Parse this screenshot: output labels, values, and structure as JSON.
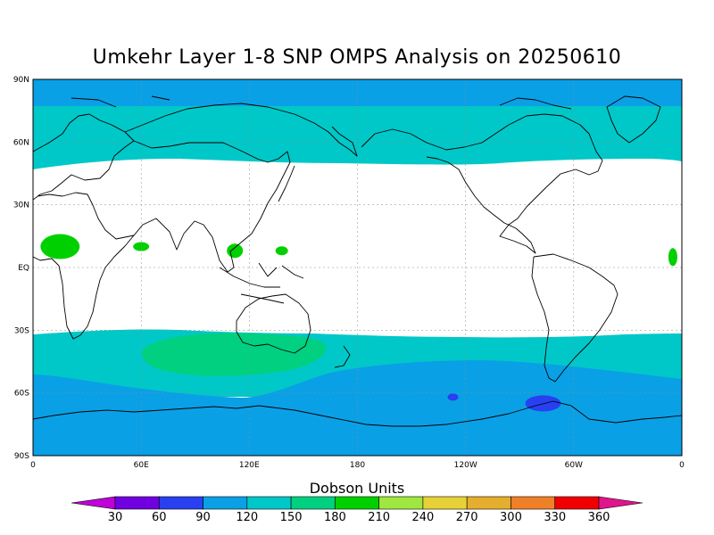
{
  "title": "Umkehr Layer 1-8 SNP OMPS Analysis on 20250610",
  "latitude_ticks": [
    "90N",
    "60N",
    "30N",
    "EQ",
    "30S",
    "60S",
    "90S"
  ],
  "longitude_ticks": [
    "0",
    "60E",
    "120E",
    "180",
    "120W",
    "60W",
    "0"
  ],
  "colorbar": {
    "title": "Dobson Units",
    "labels": [
      "30",
      "60",
      "90",
      "120",
      "150",
      "180",
      "210",
      "240",
      "270",
      "300",
      "330",
      "360"
    ],
    "colors": [
      "#c000d8",
      "#7000e0",
      "#2840f0",
      "#0aa0e6",
      "#00c8c8",
      "#00d080",
      "#00d000",
      "#a0e640",
      "#e6d238",
      "#e6ae2e",
      "#f08028",
      "#f00000",
      "#e0148c"
    ]
  },
  "chart_data": {
    "type": "heatmap",
    "title": "Umkehr Layer 1-8 SNP OMPS Analysis on 20250610",
    "projection": "cylindrical equidistant, 0 to 360 longitude",
    "xlim": [
      0,
      360
    ],
    "ylim": [
      -90,
      90
    ],
    "units": "Dobson Units",
    "bands": [
      {
        "lat_range": [
          75,
          90
        ],
        "range_du": [
          90,
          120
        ],
        "color": "#0aa0e6"
      },
      {
        "lat_range": [
          60,
          75
        ],
        "range_du": [
          120,
          150
        ],
        "color": "#00c8c8"
      },
      {
        "lat_range": [
          -35,
          60
        ],
        "range_du": [
          150,
          180
        ],
        "color": "#00d080"
      },
      {
        "lat_range": [
          -55,
          -35
        ],
        "range_du": [
          120,
          150
        ],
        "color": "#00c8c8"
      },
      {
        "lat_range": [
          -90,
          -55
        ],
        "range_du": [
          90,
          120
        ],
        "color": "#0aa0e6"
      }
    ],
    "features": [
      {
        "name": "tropical Africa",
        "lon": 15,
        "lat": 10,
        "range_du": [
          180,
          210
        ],
        "color": "#00d000"
      },
      {
        "name": "Arabian Sea",
        "lon": 60,
        "lat": 10,
        "range_du": [
          180,
          210
        ],
        "color": "#00d000"
      },
      {
        "name": "South China Sea",
        "lon": 112,
        "lat": 8,
        "range_du": [
          180,
          210
        ],
        "color": "#00d000"
      },
      {
        "name": "western Pacific",
        "lon": 138,
        "lat": 8,
        "range_du": [
          180,
          210
        ],
        "color": "#00d000"
      },
      {
        "name": "tropical Atlantic",
        "lon": 355,
        "lat": 5,
        "range_du": [
          180,
          210
        ],
        "color": "#00d000"
      },
      {
        "name": "Southern Ocean",
        "lon": 283,
        "lat": -65,
        "range_du": [
          60,
          90
        ],
        "color": "#2840f0"
      },
      {
        "name": "Southern Ocean",
        "lon": 233,
        "lat": -62,
        "range_du": [
          60,
          90
        ],
        "color": "#2840f0"
      }
    ],
    "grid": true
  }
}
